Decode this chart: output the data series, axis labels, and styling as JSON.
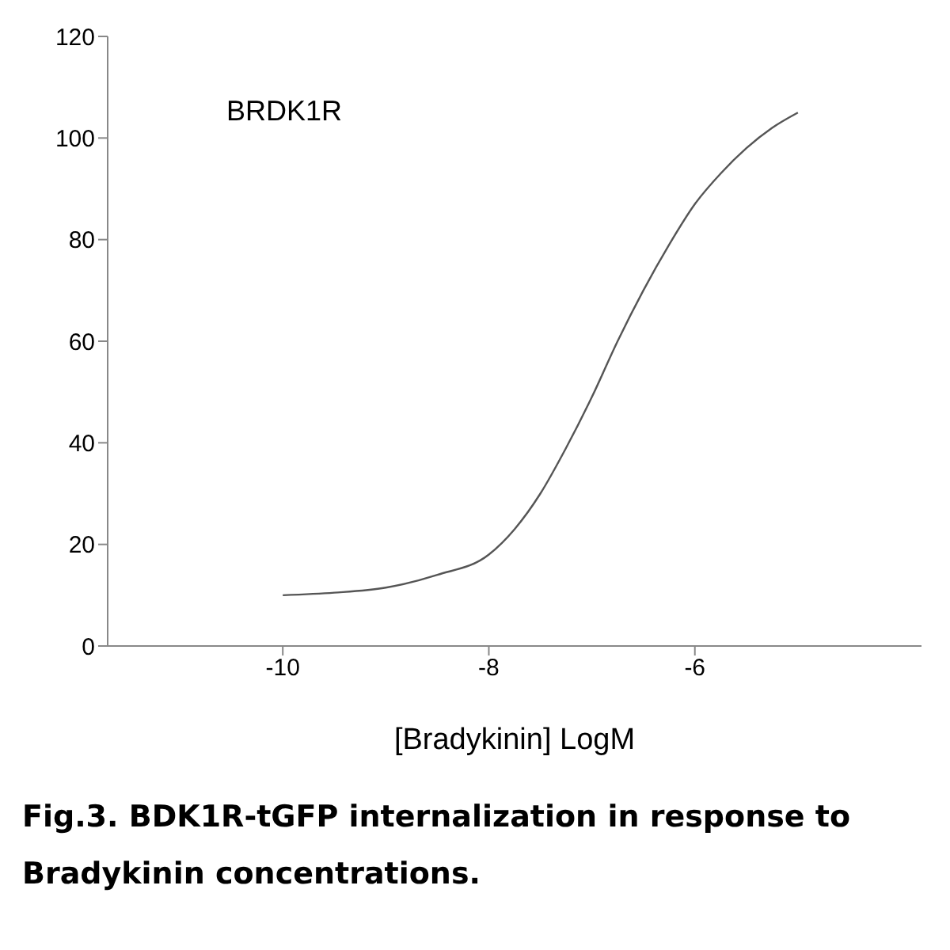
{
  "chart_data": {
    "type": "line",
    "xlabel": "[Bradykinin] LogM",
    "annotations": [
      "BRDK1R",
      "Fig.3. BDK1R-tGFP internalization in response to Bradykinin concentrations."
    ],
    "x": [
      -10,
      -9.5,
      -9,
      -8.5,
      -8,
      -7.75,
      -7.5,
      -7.25,
      -7,
      -6.75,
      -6.5,
      -6.25,
      -6,
      -5.75,
      -5.5,
      -5.25,
      -5
    ],
    "series": [
      {
        "color": "#555555",
        "values": [
          10,
          10.5,
          11.5,
          14,
          18,
          23,
          30,
          39,
          49,
          60,
          70,
          79,
          87,
          93,
          98,
          102,
          105
        ]
      }
    ],
    "xlim": [
      -11.7,
      -3.8
    ],
    "xticks": [
      -10,
      -8,
      -6
    ],
    "ylim": [
      0,
      120
    ],
    "yticks": [
      0,
      20,
      40,
      60,
      80,
      100,
      120
    ],
    "grid": false,
    "legend": false,
    "marker": "none",
    "line_style": "solid"
  }
}
